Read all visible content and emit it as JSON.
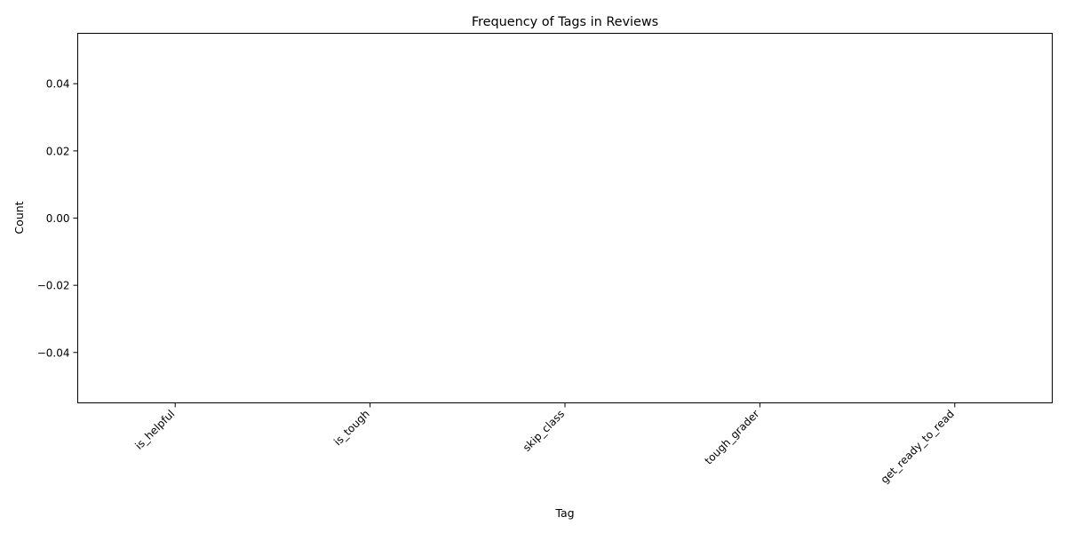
{
  "chart_data": {
    "type": "bar",
    "title": "Frequency of Tags in Reviews",
    "xlabel": "Tag",
    "ylabel": "Count",
    "categories": [
      "is_helpful",
      "is_tough",
      "skip_class",
      "tough_grader",
      "get_ready_to_read"
    ],
    "values": [
      0,
      0,
      0,
      0,
      0
    ],
    "ylim": [
      -0.055,
      0.055
    ],
    "yticks": [
      -0.04,
      -0.02,
      0.0,
      0.02,
      0.04
    ],
    "ytick_labels": [
      "−0.04",
      "−0.02",
      "0.00",
      "0.02",
      "0.04"
    ],
    "grid": false,
    "legend": "none",
    "colors": {
      "background": "#ffffff",
      "frame": "#000000",
      "text": "#000000",
      "bar": "#1f77b4"
    }
  }
}
